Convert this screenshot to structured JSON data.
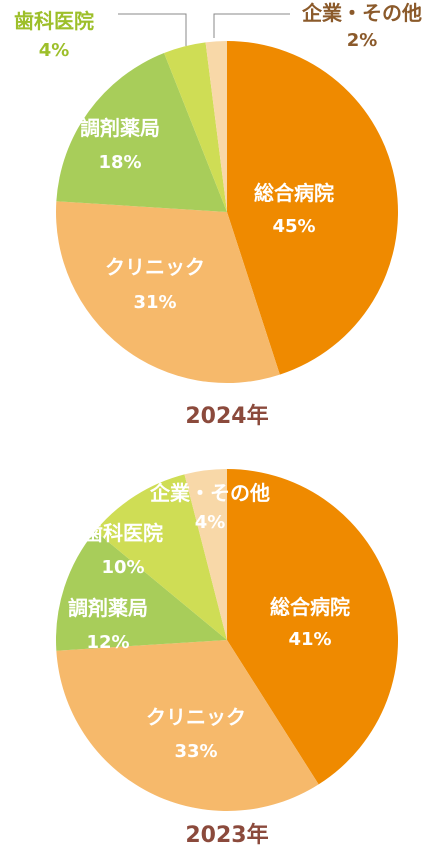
{
  "chart_data": [
    {
      "type": "pie",
      "title": "2024年",
      "slices": [
        {
          "name": "総合病院",
          "value": 45,
          "label": "45%",
          "color": "#ef8a00"
        },
        {
          "name": "クリニック",
          "value": 31,
          "label": "31%",
          "color": "#f6b96b"
        },
        {
          "name": "調剤薬局",
          "value": 18,
          "label": "18%",
          "color": "#a8cd5a"
        },
        {
          "name": "歯科医院",
          "value": 4,
          "label": "4%",
          "color": "#cfdd55"
        },
        {
          "name": "企業・その他",
          "value": 2,
          "label": "2%",
          "color": "#f8d8a8"
        }
      ]
    },
    {
      "type": "pie",
      "title": "2023年",
      "slices": [
        {
          "name": "総合病院",
          "value": 41,
          "label": "41%",
          "color": "#ef8a00"
        },
        {
          "name": "クリニック",
          "value": 33,
          "label": "33%",
          "color": "#f6b96b"
        },
        {
          "name": "調剤薬局",
          "value": 12,
          "label": "12%",
          "color": "#a8cd5a"
        },
        {
          "name": "歯科医院",
          "value": 10,
          "label": "10%",
          "color": "#cfdd55"
        },
        {
          "name": "企業・その他",
          "value": 4,
          "label": "4%",
          "color": "#f8d8a8"
        }
      ]
    }
  ],
  "colors": {
    "title": "#8b4a3c",
    "label_white": "#ffffff",
    "label_dental_outside": "#9dbf2a",
    "label_other_outside": "#8b5a2b",
    "leader_line": "#888888"
  }
}
